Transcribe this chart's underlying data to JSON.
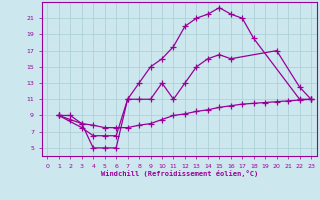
{
  "xlabel": "Windchill (Refroidissement éolien,°C)",
  "bg_color": "#cce8ee",
  "grid_color": "#aaccd4",
  "line_color": "#990099",
  "xlim": [
    -0.5,
    23.5
  ],
  "ylim": [
    4,
    23
  ],
  "xticks": [
    0,
    1,
    2,
    3,
    4,
    5,
    6,
    7,
    8,
    9,
    10,
    11,
    12,
    13,
    14,
    15,
    16,
    17,
    18,
    19,
    20,
    21,
    22,
    23
  ],
  "yticks": [
    5,
    7,
    9,
    11,
    13,
    15,
    17,
    19,
    21
  ],
  "line1_x": [
    1,
    2,
    3,
    4,
    5,
    6,
    7,
    8,
    9,
    10,
    11,
    12,
    13,
    14,
    15,
    16,
    17,
    18,
    22,
    23
  ],
  "line1_y": [
    9,
    9,
    8,
    5,
    5,
    5,
    11,
    13,
    15,
    16,
    17.5,
    20,
    21,
    21.5,
    22.3,
    21.5,
    21,
    18.5,
    11,
    11
  ],
  "line2_x": [
    1,
    3,
    4,
    5,
    6,
    7,
    8,
    9,
    10,
    11,
    12,
    13,
    14,
    15,
    16,
    20,
    22,
    23
  ],
  "line2_y": [
    9,
    7.5,
    6.5,
    6.5,
    6.5,
    11,
    11,
    11,
    13,
    11,
    13,
    15,
    16,
    16.5,
    16,
    17,
    12.5,
    11
  ],
  "line3_x": [
    1,
    2,
    3,
    4,
    5,
    6,
    7,
    8,
    9,
    10,
    11,
    12,
    13,
    14,
    15,
    16,
    17,
    18,
    19,
    20,
    21,
    22,
    23
  ],
  "line3_y": [
    9,
    8.5,
    8,
    7.8,
    7.5,
    7.5,
    7.5,
    7.8,
    8,
    8.5,
    9,
    9.2,
    9.5,
    9.7,
    10,
    10.2,
    10.4,
    10.5,
    10.6,
    10.7,
    10.8,
    10.9,
    11
  ]
}
